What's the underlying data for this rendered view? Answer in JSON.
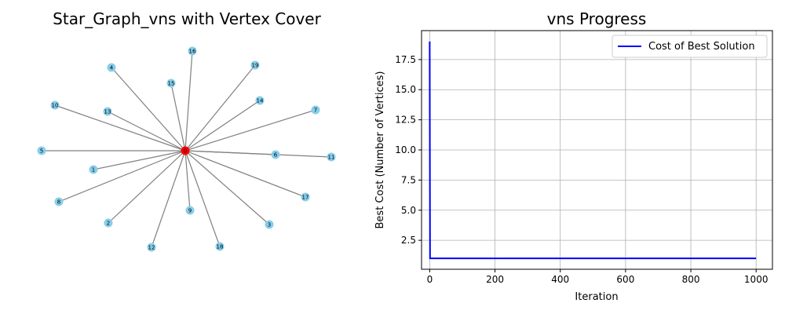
{
  "colors": {
    "edge": "#808080",
    "node": "#87ceeb",
    "cover_node": "#ff0000",
    "line": "#0000ff",
    "grid": "#b0b0b0",
    "axis": "#000000"
  },
  "chart_data": [
    {
      "type": "network",
      "title": "Star_Graph_vns with Vertex Cover",
      "center_node": "0",
      "cover": [
        "0"
      ],
      "nodes": [
        "0",
        "1",
        "2",
        "3",
        "4",
        "5",
        "6",
        "7",
        "8",
        "9",
        "10",
        "11",
        "12",
        "13",
        "14",
        "15",
        "16",
        "17",
        "18",
        "19"
      ],
      "edges": [
        [
          "0",
          "1"
        ],
        [
          "0",
          "2"
        ],
        [
          "0",
          "3"
        ],
        [
          "0",
          "4"
        ],
        [
          "0",
          "5"
        ],
        [
          "0",
          "6"
        ],
        [
          "0",
          "7"
        ],
        [
          "0",
          "8"
        ],
        [
          "0",
          "9"
        ],
        [
          "0",
          "10"
        ],
        [
          "0",
          "11"
        ],
        [
          "0",
          "12"
        ],
        [
          "0",
          "13"
        ],
        [
          "0",
          "14"
        ],
        [
          "0",
          "15"
        ],
        [
          "0",
          "16"
        ],
        [
          "0",
          "17"
        ],
        [
          "0",
          "18"
        ],
        [
          "0",
          "19"
        ]
      ]
    },
    {
      "type": "line",
      "title": "vns Progress",
      "xlabel": "Iteration",
      "ylabel": "Best Cost (Number of Vertices)",
      "xlim": [
        -25,
        1050
      ],
      "ylim": [
        0.1,
        19.9
      ],
      "xticks": [
        0,
        200,
        400,
        600,
        800,
        1000
      ],
      "yticks": [
        2.5,
        5.0,
        7.5,
        10.0,
        12.5,
        15.0,
        17.5
      ],
      "xtick_labels": [
        "0",
        "200",
        "400",
        "600",
        "800",
        "1000"
      ],
      "ytick_labels": [
        "2.5",
        "5.0",
        "7.5",
        "10.0",
        "12.5",
        "15.0",
        "17.5"
      ],
      "grid": true,
      "legend_position": "top-right",
      "series": [
        {
          "name": "Cost of Best Solution",
          "x": [
            0,
            1,
            1000
          ],
          "y": [
            19,
            1,
            1
          ]
        }
      ]
    }
  ]
}
